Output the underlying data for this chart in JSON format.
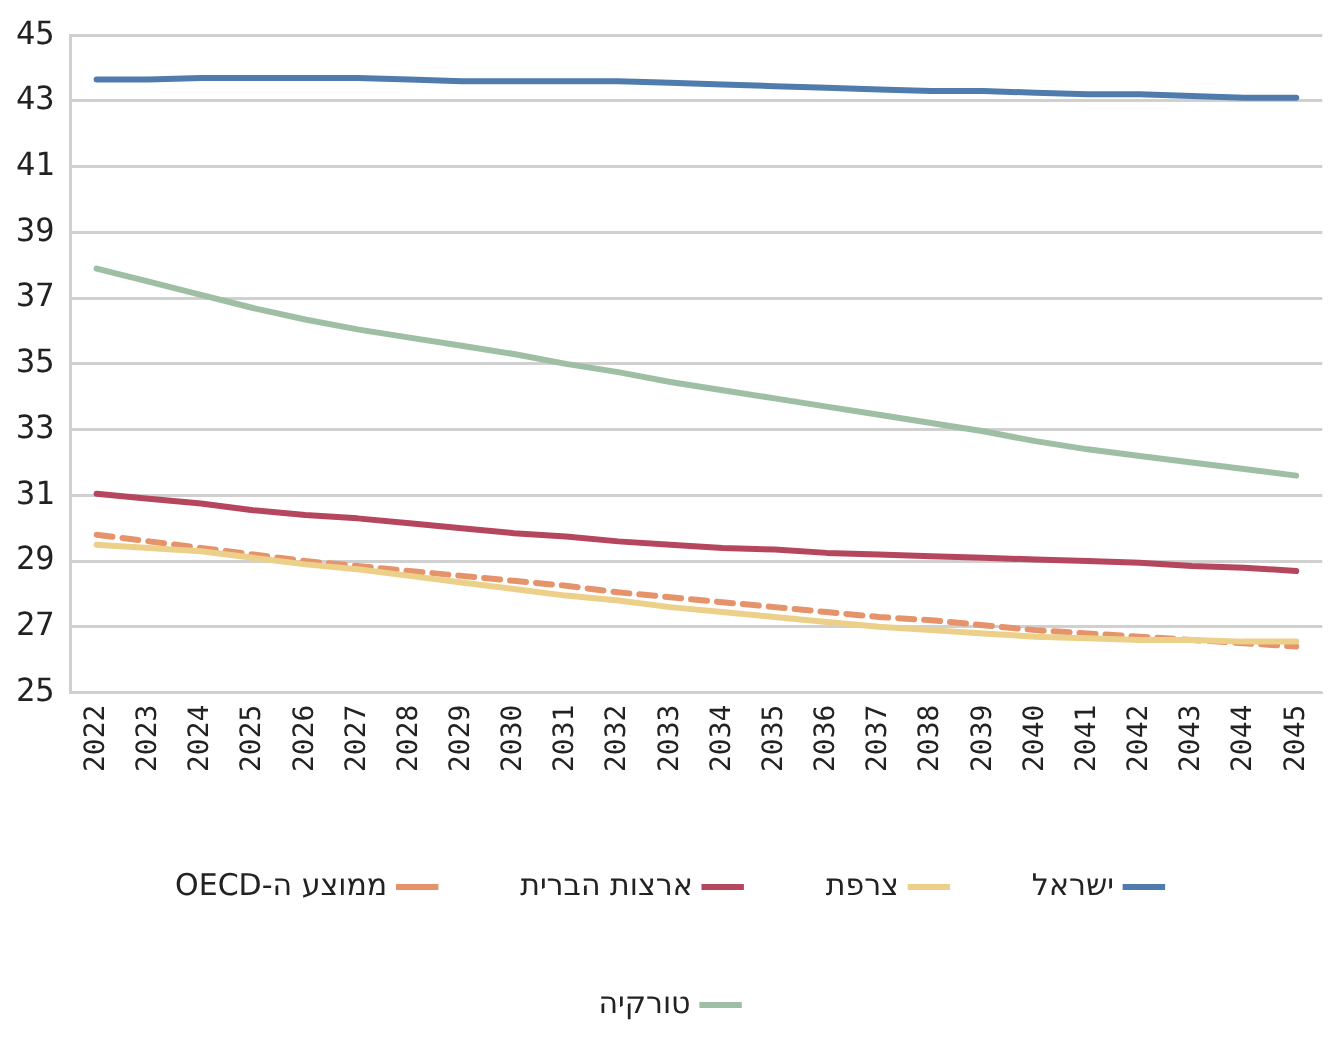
{
  "chart_data": {
    "type": "line",
    "categories": [
      "2022",
      "2023",
      "2024",
      "2025",
      "2026",
      "2027",
      "2028",
      "2029",
      "2030",
      "2031",
      "2032",
      "2033",
      "2034",
      "2035",
      "2036",
      "2037",
      "2038",
      "2039",
      "2040",
      "2041",
      "2042",
      "2043",
      "2044",
      "2045"
    ],
    "series": [
      {
        "name": "ישראל",
        "color": "#4f7cac",
        "values": [
          43.65,
          43.65,
          43.7,
          43.7,
          43.7,
          43.7,
          43.65,
          43.6,
          43.6,
          43.6,
          43.6,
          43.55,
          43.5,
          43.45,
          43.4,
          43.35,
          43.3,
          43.3,
          43.25,
          43.2,
          43.2,
          43.15,
          43.1,
          43.1
        ]
      },
      {
        "name": "צרפת",
        "color": "#ecd08a",
        "values": [
          29.5,
          29.4,
          29.3,
          29.1,
          28.9,
          28.75,
          28.55,
          28.35,
          28.15,
          27.95,
          27.8,
          27.6,
          27.45,
          27.3,
          27.15,
          27.0,
          26.9,
          26.8,
          26.7,
          26.65,
          26.6,
          26.6,
          26.55,
          26.55
        ]
      },
      {
        "name": "ארצות הברית",
        "color": "#b5465e",
        "values": [
          31.05,
          30.9,
          30.75,
          30.55,
          30.4,
          30.3,
          30.15,
          30.0,
          29.85,
          29.75,
          29.6,
          29.5,
          29.4,
          29.35,
          29.25,
          29.2,
          29.15,
          29.1,
          29.05,
          29.0,
          28.95,
          28.85,
          28.8,
          28.7
        ]
      },
      {
        "name": "ממוצע ה-OECD",
        "color": "#e5936b",
        "line_style": "dashed",
        "values": [
          29.8,
          29.6,
          29.4,
          29.2,
          29.0,
          28.85,
          28.7,
          28.55,
          28.4,
          28.25,
          28.05,
          27.9,
          27.75,
          27.6,
          27.45,
          27.3,
          27.2,
          27.05,
          26.9,
          26.8,
          26.7,
          26.6,
          26.5,
          26.4
        ]
      },
      {
        "name": "טורקיה",
        "color": "#9ebfa3",
        "values": [
          37.9,
          37.5,
          37.1,
          36.7,
          36.35,
          36.05,
          35.8,
          35.55,
          35.3,
          35.0,
          34.75,
          34.45,
          34.2,
          33.95,
          33.7,
          33.45,
          33.2,
          32.95,
          32.65,
          32.4,
          32.2,
          32.0,
          31.8,
          31.6
        ]
      }
    ],
    "ylim": [
      25,
      45
    ],
    "yticks": [
      25,
      27,
      29,
      31,
      33,
      35,
      37,
      39,
      41,
      43,
      45
    ],
    "grid": "y",
    "legend": "bottom",
    "marker": "none",
    "line_style": "solid"
  }
}
